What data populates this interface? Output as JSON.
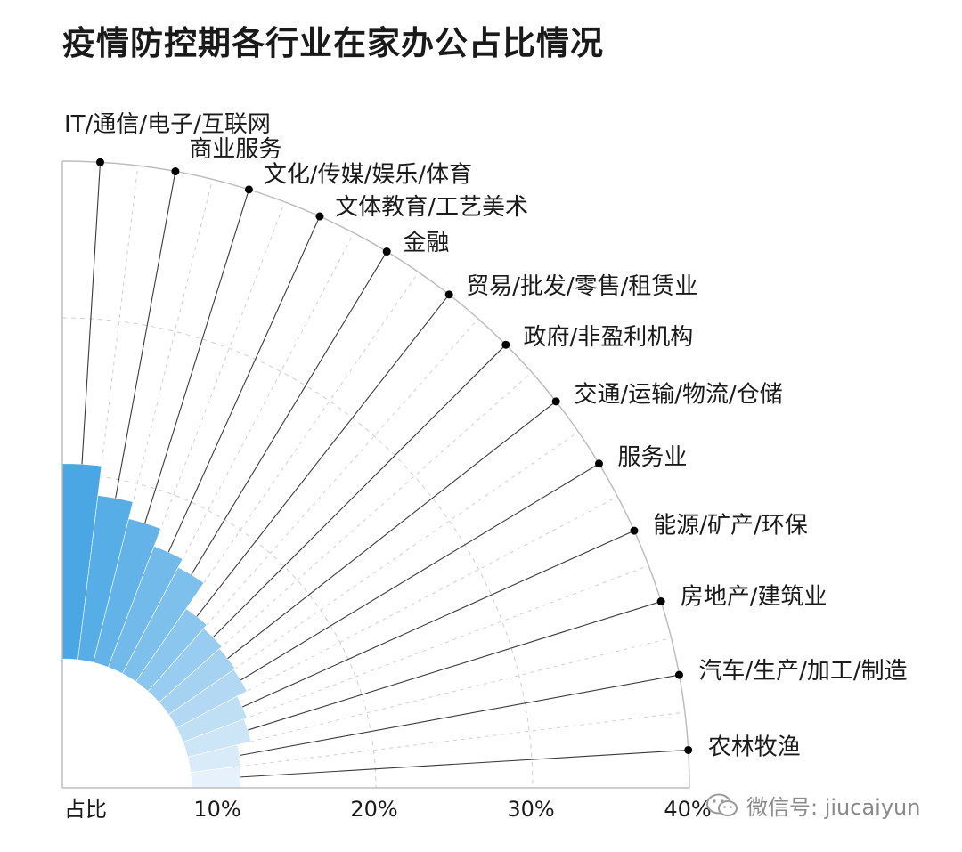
{
  "chart_data": {
    "type": "bar",
    "layout": "radial",
    "title": "疫情防控期各行业在家办公占比情况",
    "xlabel": "占比",
    "categories": [
      "IT/通信/电子/互联网",
      "商业服务",
      "文化/传媒/娱乐/体育",
      "文体教育/工艺美术",
      "金融",
      "贸易/批发/零售/租赁业",
      "政府/非盈利机构",
      "交通/运输/物流/仓储",
      "服务业",
      "能源/矿产/环保",
      "房地产/建筑业",
      "汽车/生产/加工/制造",
      "农林牧渔"
    ],
    "values": [
      20.7,
      18.8,
      17.7,
      16.5,
      15.9,
      13.9,
      13.6,
      13.4,
      13.3,
      12.6,
      12.4,
      11.5,
      11.4
    ],
    "ticks": [
      "10%",
      "20%",
      "30%",
      "40%"
    ],
    "tick_values": [
      10,
      20,
      30,
      40
    ],
    "xlim": [
      0,
      40
    ],
    "colors": {
      "bar_start": "#4aa7e4",
      "bar_end": "#e6f1fb",
      "axis": "#bdbdbd",
      "leader": "#3a3a3a",
      "marker": "#000000",
      "grid": "#cfcfcf"
    }
  },
  "watermark": {
    "label": "微信号: jiucaiyun",
    "icon": "wechat-icon"
  }
}
